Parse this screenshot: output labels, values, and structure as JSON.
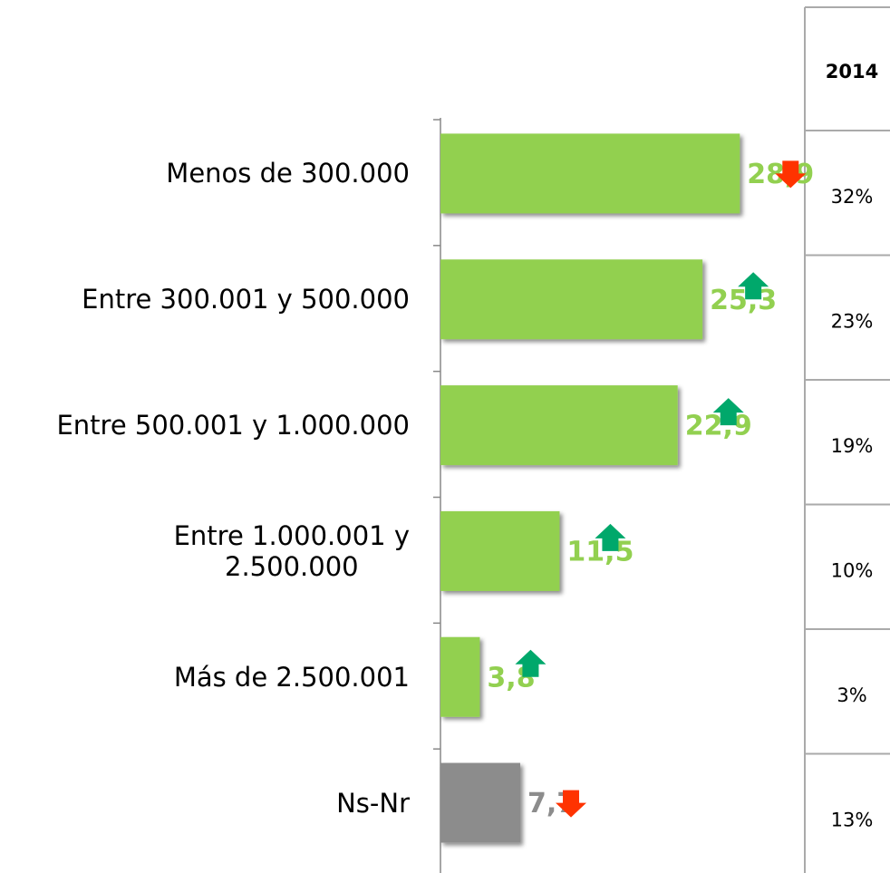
{
  "chart_data": {
    "type": "barh",
    "categories": [
      "Menos de 300.000",
      "Entre 300.001 y 500.000",
      "Entre 500.001 y 1.000.000",
      "Entre 1.000.001 y\n2.500.000",
      "Más de 2.500.001",
      "Ns-Nr"
    ],
    "values": [
      28.9,
      25.3,
      22.9,
      11.5,
      3.8,
      7.7
    ],
    "value_labels": [
      "28,9",
      "25,3",
      "22,9",
      "11,5",
      "3,8",
      "7,7"
    ],
    "colors": [
      "#92d050",
      "#92d050",
      "#92d050",
      "#92d050",
      "#92d050",
      "#8c8c8c"
    ],
    "trend": [
      "down",
      "up",
      "up",
      "up",
      "up",
      "down"
    ],
    "xlim": [
      0,
      35
    ]
  },
  "table": {
    "header": "2014",
    "values": [
      "32%",
      "23%",
      "19%",
      "10%",
      "3%",
      "13%"
    ]
  }
}
